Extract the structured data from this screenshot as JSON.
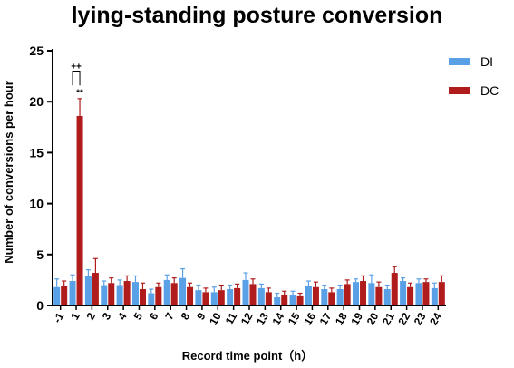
{
  "chart_data": {
    "type": "bar",
    "title": "lying-standing posture conversion",
    "xlabel": "Record time point（h）",
    "ylabel": "Number of conversions per hour",
    "ylim": [
      0,
      25
    ],
    "yticks": [
      "0",
      "5",
      "10",
      "15",
      "20",
      "25"
    ],
    "grid": false,
    "legend_position": "right",
    "categories": [
      "-1",
      "1",
      "2",
      "3",
      "4",
      "5",
      "6",
      "7",
      "8",
      "9",
      "10",
      "11",
      "12",
      "13",
      "14",
      "15",
      "16",
      "17",
      "18",
      "19",
      "20",
      "21",
      "22",
      "23",
      "24"
    ],
    "series": [
      {
        "name": "DI",
        "color": "#5aa0e6",
        "values": [
          1.8,
          2.4,
          2.9,
          2.0,
          2.0,
          2.3,
          1.2,
          2.5,
          2.7,
          1.5,
          1.3,
          1.6,
          2.5,
          1.7,
          0.8,
          1.0,
          1.9,
          1.6,
          1.6,
          2.3,
          2.2,
          1.6,
          2.4,
          2.2,
          1.7
        ],
        "errors": [
          0.8,
          0.6,
          0.6,
          0.4,
          0.5,
          0.6,
          0.4,
          0.5,
          0.9,
          0.5,
          0.5,
          0.4,
          0.7,
          0.4,
          0.4,
          0.4,
          0.5,
          0.4,
          0.4,
          0.3,
          0.8,
          0.4,
          0.3,
          0.4,
          0.5
        ]
      },
      {
        "name": "DC",
        "color": "#b01c1c",
        "values": [
          1.9,
          18.6,
          3.2,
          2.2,
          2.4,
          1.6,
          1.8,
          2.2,
          1.8,
          1.3,
          1.5,
          1.7,
          2.1,
          1.3,
          1.0,
          0.9,
          1.8,
          1.3,
          2.1,
          2.4,
          1.8,
          3.2,
          1.8,
          2.3,
          2.3
        ],
        "errors": [
          0.5,
          1.7,
          1.4,
          0.5,
          0.5,
          0.6,
          0.4,
          0.5,
          0.4,
          0.4,
          0.5,
          0.4,
          0.5,
          0.4,
          0.4,
          0.3,
          0.5,
          0.4,
          0.4,
          0.5,
          0.5,
          0.6,
          0.4,
          0.3,
          0.6
        ]
      }
    ],
    "annotations": [
      {
        "category": "1",
        "text": "**"
      },
      {
        "category": "1",
        "text": "++"
      }
    ]
  }
}
